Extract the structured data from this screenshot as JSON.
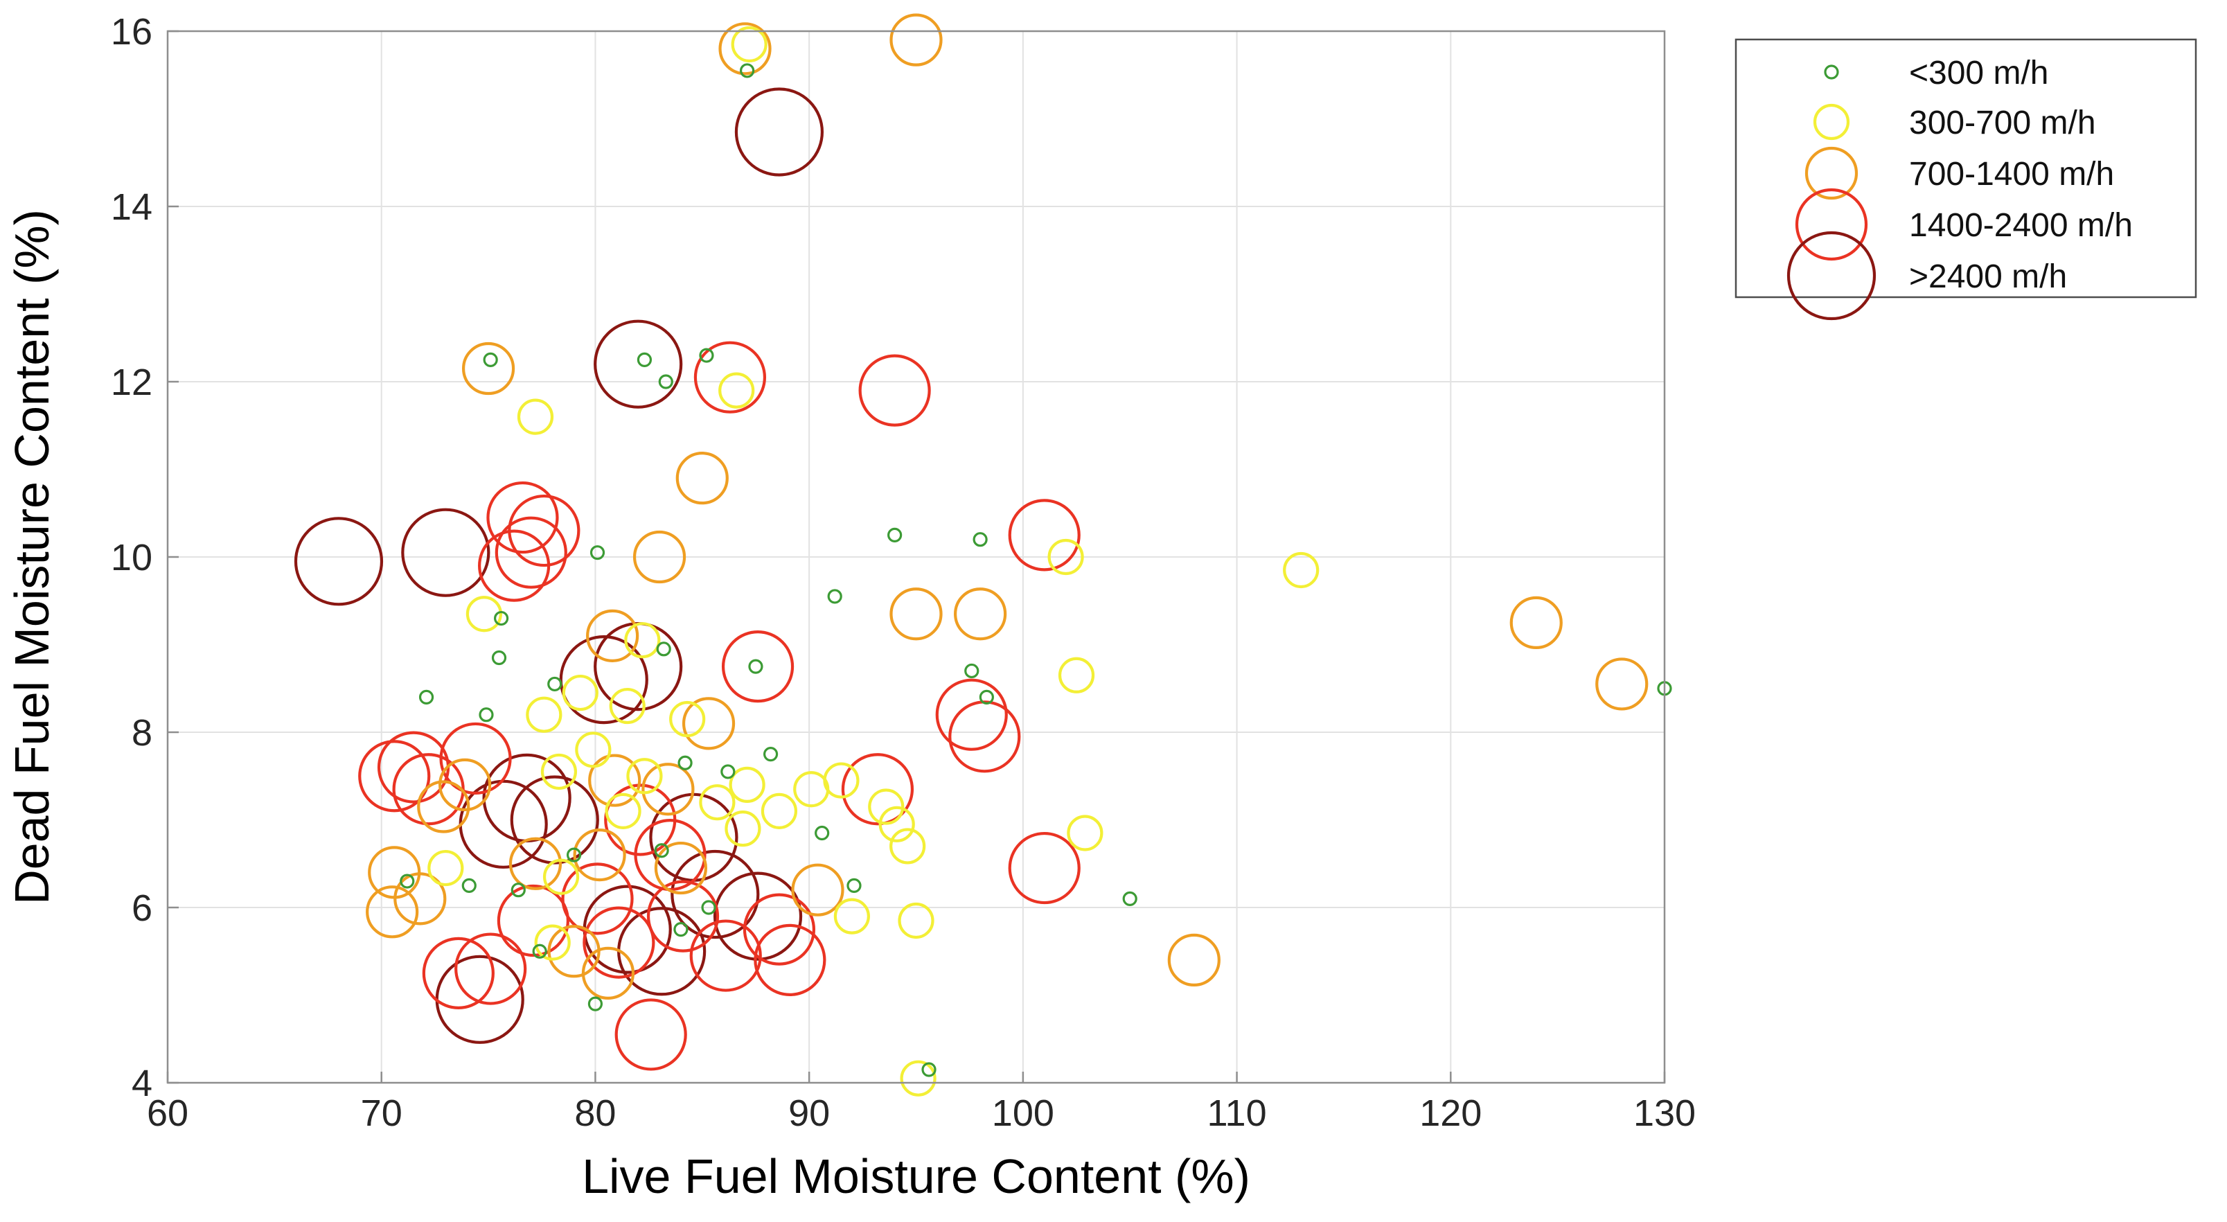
{
  "figure": {
    "background": "#ffffff",
    "grid_color": "#e2e2e2",
    "axis_box_color": "#8e8e8e",
    "tick_label_color": "#262626",
    "label_color": "#000000",
    "legend_border_color": "#4d4d4d"
  },
  "chart_data": {
    "type": "scatter",
    "title": "",
    "xlabel": "Live Fuel Moisture Content (%)",
    "ylabel": "Dead Fuel Moisture Content (%)",
    "xlim": [
      60,
      130
    ],
    "ylim": [
      4,
      16
    ],
    "xticks": [
      60,
      70,
      80,
      90,
      100,
      110,
      120,
      130
    ],
    "yticks": [
      4,
      6,
      8,
      10,
      12,
      14,
      16
    ],
    "grid": true,
    "legend_position": "outside-top-right",
    "categories": [
      {
        "label": "<300 m/h",
        "color": "#3c9b35",
        "radius_px": 9
      },
      {
        "label": "300-700 m/h",
        "color": "#f3ef36",
        "radius_px": 24
      },
      {
        "label": "700-1400 m/h",
        "color": "#ef9e22",
        "radius_px": 36
      },
      {
        "label": "1400-2400 m/h",
        "color": "#ea3323",
        "radius_px": 50
      },
      {
        "label": ">2400 m/h",
        "color": "#8b1712",
        "radius_px": 62
      }
    ],
    "points": [
      [
        87.2,
        15.85,
        1
      ],
      [
        87.0,
        15.8,
        2
      ],
      [
        87.1,
        15.55,
        0
      ],
      [
        95.0,
        15.9,
        2
      ],
      [
        88.6,
        14.85,
        4
      ],
      [
        82.0,
        12.2,
        4
      ],
      [
        75.0,
        12.15,
        2
      ],
      [
        75.1,
        12.25,
        0
      ],
      [
        77.2,
        11.6,
        1
      ],
      [
        82.3,
        12.25,
        0
      ],
      [
        83.3,
        12.0,
        0
      ],
      [
        85.2,
        12.3,
        0
      ],
      [
        86.6,
        11.9,
        1
      ],
      [
        86.3,
        12.05,
        3
      ],
      [
        94.0,
        11.9,
        3
      ],
      [
        85.0,
        10.9,
        2
      ],
      [
        76.6,
        10.45,
        3
      ],
      [
        77.6,
        10.3,
        3
      ],
      [
        77.0,
        10.05,
        3
      ],
      [
        76.2,
        9.9,
        3
      ],
      [
        73.0,
        10.05,
        4
      ],
      [
        68.0,
        9.95,
        4
      ],
      [
        74.8,
        9.35,
        1
      ],
      [
        75.6,
        9.3,
        0
      ],
      [
        80.1,
        10.05,
        0
      ],
      [
        83.0,
        10.0,
        2
      ],
      [
        94.0,
        10.25,
        0
      ],
      [
        98.0,
        10.2,
        0
      ],
      [
        101.0,
        10.25,
        3
      ],
      [
        102.0,
        10.0,
        1
      ],
      [
        113.0,
        9.85,
        1
      ],
      [
        91.2,
        9.55,
        0
      ],
      [
        95.0,
        9.35,
        2
      ],
      [
        98.0,
        9.35,
        2
      ],
      [
        124.0,
        9.25,
        2
      ],
      [
        128.0,
        8.55,
        2
      ],
      [
        130.0,
        8.5,
        0
      ],
      [
        75.5,
        8.85,
        0
      ],
      [
        80.8,
        9.1,
        2
      ],
      [
        82.2,
        9.05,
        1
      ],
      [
        82.0,
        8.75,
        4
      ],
      [
        80.4,
        8.6,
        4
      ],
      [
        83.2,
        8.95,
        0
      ],
      [
        79.3,
        8.45,
        1
      ],
      [
        81.5,
        8.3,
        1
      ],
      [
        84.3,
        8.15,
        1
      ],
      [
        85.3,
        8.1,
        2
      ],
      [
        87.6,
        8.75,
        3
      ],
      [
        87.5,
        8.75,
        0
      ],
      [
        72.1,
        8.4,
        0
      ],
      [
        78.1,
        8.55,
        0
      ],
      [
        77.6,
        8.2,
        1
      ],
      [
        74.9,
        8.2,
        0
      ],
      [
        97.6,
        8.2,
        3
      ],
      [
        98.2,
        7.95,
        3
      ],
      [
        98.3,
        8.4,
        0
      ],
      [
        97.6,
        8.7,
        0
      ],
      [
        102.5,
        8.65,
        1
      ],
      [
        88.2,
        7.75,
        0
      ],
      [
        86.2,
        7.55,
        0
      ],
      [
        84.2,
        7.65,
        0
      ],
      [
        90.1,
        7.35,
        1
      ],
      [
        91.5,
        7.45,
        1
      ],
      [
        93.2,
        7.35,
        3
      ],
      [
        94.1,
        6.95,
        1
      ],
      [
        94.6,
        6.7,
        1
      ],
      [
        93.6,
        7.15,
        1
      ],
      [
        79.9,
        7.8,
        1
      ],
      [
        78.3,
        7.55,
        1
      ],
      [
        80.9,
        7.45,
        2
      ],
      [
        82.3,
        7.5,
        1
      ],
      [
        83.4,
        7.35,
        2
      ],
      [
        76.8,
        7.25,
        4
      ],
      [
        75.7,
        6.95,
        4
      ],
      [
        78.1,
        7.0,
        4
      ],
      [
        73.9,
        7.4,
        2
      ],
      [
        72.9,
        7.15,
        2
      ],
      [
        71.5,
        7.6,
        3
      ],
      [
        70.6,
        7.5,
        3
      ],
      [
        72.2,
        7.35,
        3
      ],
      [
        74.4,
        7.7,
        3
      ],
      [
        81.3,
        7.1,
        1
      ],
      [
        85.7,
        7.2,
        1
      ],
      [
        87.1,
        7.4,
        1
      ],
      [
        88.6,
        7.1,
        1
      ],
      [
        86.9,
        6.9,
        1
      ],
      [
        90.6,
        6.85,
        0
      ],
      [
        101.0,
        6.45,
        3
      ],
      [
        102.9,
        6.85,
        1
      ],
      [
        105.0,
        6.1,
        0
      ],
      [
        92.1,
        6.25,
        0
      ],
      [
        92.0,
        5.9,
        1
      ],
      [
        95.0,
        5.85,
        1
      ],
      [
        90.4,
        6.2,
        2
      ],
      [
        84.6,
        6.8,
        4
      ],
      [
        85.6,
        6.15,
        4
      ],
      [
        83.5,
        6.6,
        3
      ],
      [
        82.1,
        7.0,
        3
      ],
      [
        84.0,
        6.45,
        2
      ],
      [
        80.2,
        6.6,
        2
      ],
      [
        79.0,
        6.6,
        0
      ],
      [
        78.4,
        6.35,
        1
      ],
      [
        77.2,
        6.5,
        2
      ],
      [
        76.4,
        6.2,
        0
      ],
      [
        74.1,
        6.25,
        0
      ],
      [
        71.2,
        6.3,
        0
      ],
      [
        70.6,
        6.4,
        2
      ],
      [
        70.5,
        5.95,
        2
      ],
      [
        71.8,
        6.1,
        2
      ],
      [
        73.0,
        6.45,
        1
      ],
      [
        83.1,
        6.65,
        0
      ],
      [
        81.5,
        5.75,
        4
      ],
      [
        83.1,
        5.5,
        4
      ],
      [
        87.6,
        5.9,
        4
      ],
      [
        74.6,
        4.95,
        4
      ],
      [
        80.1,
        6.1,
        3
      ],
      [
        81.1,
        5.6,
        3
      ],
      [
        84.1,
        5.9,
        3
      ],
      [
        88.6,
        5.75,
        3
      ],
      [
        89.1,
        5.4,
        3
      ],
      [
        86.1,
        5.45,
        3
      ],
      [
        75.1,
        5.3,
        3
      ],
      [
        73.6,
        5.25,
        3
      ],
      [
        77.1,
        5.85,
        3
      ],
      [
        80.0,
        4.9,
        0
      ],
      [
        82.6,
        4.55,
        3
      ],
      [
        79.0,
        5.5,
        2
      ],
      [
        78.0,
        5.6,
        1
      ],
      [
        80.6,
        5.25,
        2
      ],
      [
        85.3,
        6.0,
        0
      ],
      [
        84.0,
        5.75,
        0
      ],
      [
        77.4,
        5.5,
        0
      ],
      [
        108.0,
        5.4,
        2
      ],
      [
        95.6,
        4.15,
        0
      ],
      [
        95.1,
        4.05,
        1
      ]
    ]
  }
}
